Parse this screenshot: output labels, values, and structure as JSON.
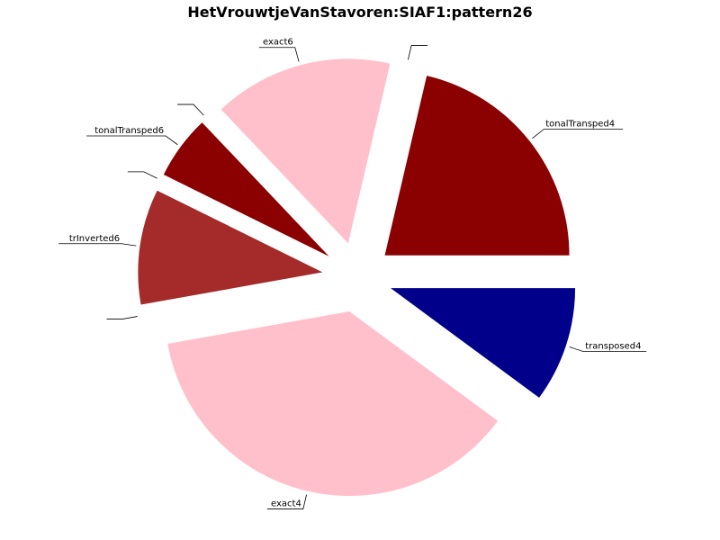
{
  "chart_data": {
    "type": "pie",
    "title": "HetVrouwtjeVanStavoren:SIAF1:pattern26",
    "slices": [
      {
        "label": "tonalTransped4",
        "value": 19,
        "color": "#8b0000"
      },
      {
        "label": "",
        "value": 0,
        "color": "#ffc0cb"
      },
      {
        "label": "exact6",
        "value": 14,
        "color": "#ffc0cb"
      },
      {
        "label": "",
        "value": 0,
        "color": "#00008b"
      },
      {
        "label": "tonalTransped6",
        "value": 5,
        "color": "#8b0000"
      },
      {
        "label": "",
        "value": 0,
        "color": "#8b0000"
      },
      {
        "label": "trInverted6",
        "value": 9,
        "color": "#a52a2a"
      },
      {
        "label": "",
        "value": 0,
        "color": "#a52a2a"
      },
      {
        "label": "exact4",
        "value": 33,
        "color": "#ffc0cb"
      },
      {
        "label": "transposed4",
        "value": 9,
        "color": "#00008b"
      }
    ]
  }
}
